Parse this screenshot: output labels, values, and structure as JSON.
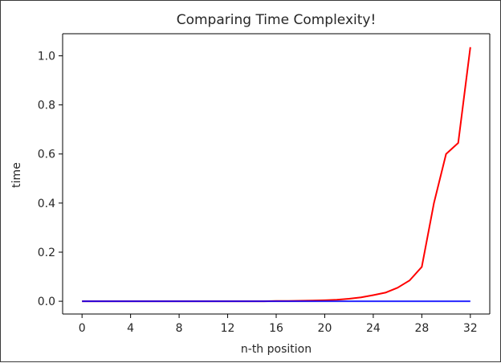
{
  "chart_data": {
    "type": "line",
    "title": "Comparing Time Complexity!",
    "xlabel": "n-th position",
    "ylabel": "time",
    "xlim": [
      -1.6,
      33.6
    ],
    "ylim": [
      -0.052,
      1.09
    ],
    "xticks": [
      0,
      4,
      8,
      12,
      16,
      20,
      24,
      28,
      32
    ],
    "xtick_labels": [
      "0",
      "4",
      "8",
      "12",
      "16",
      "20",
      "24",
      "28",
      "32"
    ],
    "yticks": [
      0.0,
      0.2,
      0.4,
      0.6,
      0.8,
      1.0
    ],
    "ytick_labels": [
      "0.0",
      "0.2",
      "0.4",
      "0.6",
      "0.8",
      "1.0"
    ],
    "grid": false,
    "legend": "none",
    "series": [
      {
        "color": "#ff0000",
        "x": [
          0,
          1,
          2,
          3,
          4,
          5,
          6,
          7,
          8,
          9,
          10,
          11,
          12,
          13,
          14,
          15,
          16,
          17,
          18,
          19,
          20,
          21,
          22,
          23,
          24,
          25,
          26,
          27,
          28,
          29,
          30,
          31,
          32
        ],
        "y": [
          0,
          0,
          0,
          0,
          0,
          0,
          0,
          0,
          0,
          0,
          0,
          0,
          0,
          0,
          0,
          0,
          0.001,
          0.001,
          0.002,
          0.003,
          0.004,
          0.006,
          0.01,
          0.016,
          0.025,
          0.035,
          0.055,
          0.085,
          0.14,
          0.4,
          0.6,
          0.645,
          1.035
        ]
      },
      {
        "color": "#0000ff",
        "x": [
          0,
          1,
          2,
          3,
          4,
          5,
          6,
          7,
          8,
          9,
          10,
          11,
          12,
          13,
          14,
          15,
          16,
          17,
          18,
          19,
          20,
          21,
          22,
          23,
          24,
          25,
          26,
          27,
          28,
          29,
          30,
          31,
          32
        ],
        "y": [
          0,
          0,
          0,
          0,
          0,
          0,
          0,
          0,
          0,
          0,
          0,
          0,
          0,
          0,
          0,
          0,
          0,
          0,
          0,
          0,
          0,
          0,
          0,
          0,
          0,
          0,
          0,
          0,
          0,
          0,
          0,
          0,
          0
        ]
      }
    ]
  }
}
